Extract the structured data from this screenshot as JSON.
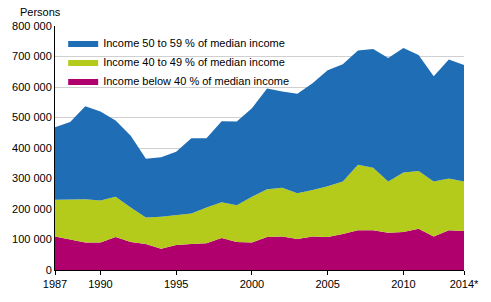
{
  "chart_data": {
    "type": "area",
    "stacked": true,
    "ylabel": "Persons",
    "x": [
      1987,
      1988,
      1989,
      1990,
      1991,
      1992,
      1993,
      1994,
      1995,
      1996,
      1997,
      1998,
      1999,
      2000,
      2001,
      2002,
      2003,
      2004,
      2005,
      2006,
      2007,
      2008,
      2009,
      2010,
      2011,
      2012,
      2013,
      2014
    ],
    "series": [
      {
        "name": "Income below 40 % of median income",
        "color": "#b0006e",
        "values": [
          110000,
          100000,
          90000,
          90000,
          108000,
          92000,
          85000,
          70000,
          82000,
          85000,
          88000,
          105000,
          92000,
          90000,
          108000,
          110000,
          102000,
          110000,
          108000,
          118000,
          130000,
          130000,
          122000,
          125000,
          135000,
          110000,
          130000,
          128000
        ]
      },
      {
        "name": "Income 40 to 49 % of median income",
        "color": "#b4cb1c",
        "values": [
          120000,
          130000,
          142000,
          138000,
          132000,
          113000,
          87000,
          105000,
          98000,
          100000,
          117000,
          117000,
          120000,
          150000,
          157000,
          160000,
          150000,
          152000,
          167000,
          172000,
          215000,
          205000,
          168000,
          195000,
          190000,
          180000,
          170000,
          162000
        ]
      },
      {
        "name": "Income 50 to 59 % of median income",
        "color": "#1f6db5",
        "values": [
          238000,
          255000,
          305000,
          292000,
          250000,
          235000,
          193000,
          195000,
          208000,
          247000,
          227000,
          266000,
          275000,
          290000,
          330000,
          315000,
          326000,
          350000,
          380000,
          385000,
          375000,
          390000,
          405000,
          408000,
          380000,
          345000,
          390000,
          382000
        ]
      }
    ],
    "xlim": [
      1987,
      2014
    ],
    "xticks": [
      1987,
      1990,
      1995,
      2000,
      2005,
      2010,
      {
        "value": 2014,
        "label": "2014*"
      }
    ],
    "ylim": [
      0,
      800000
    ],
    "yticks": [
      0,
      {
        "value": 100000,
        "label": "100 000"
      },
      {
        "value": 200000,
        "label": "200 000"
      },
      {
        "value": 300000,
        "label": "300 000"
      },
      {
        "value": 400000,
        "label": "400 000"
      },
      {
        "value": 500000,
        "label": "500 000"
      },
      {
        "value": 600000,
        "label": "600 000"
      },
      {
        "value": 700000,
        "label": "700 000"
      },
      {
        "value": 800000,
        "label": "800 000"
      }
    ],
    "grid": true,
    "legend": "top-left"
  }
}
